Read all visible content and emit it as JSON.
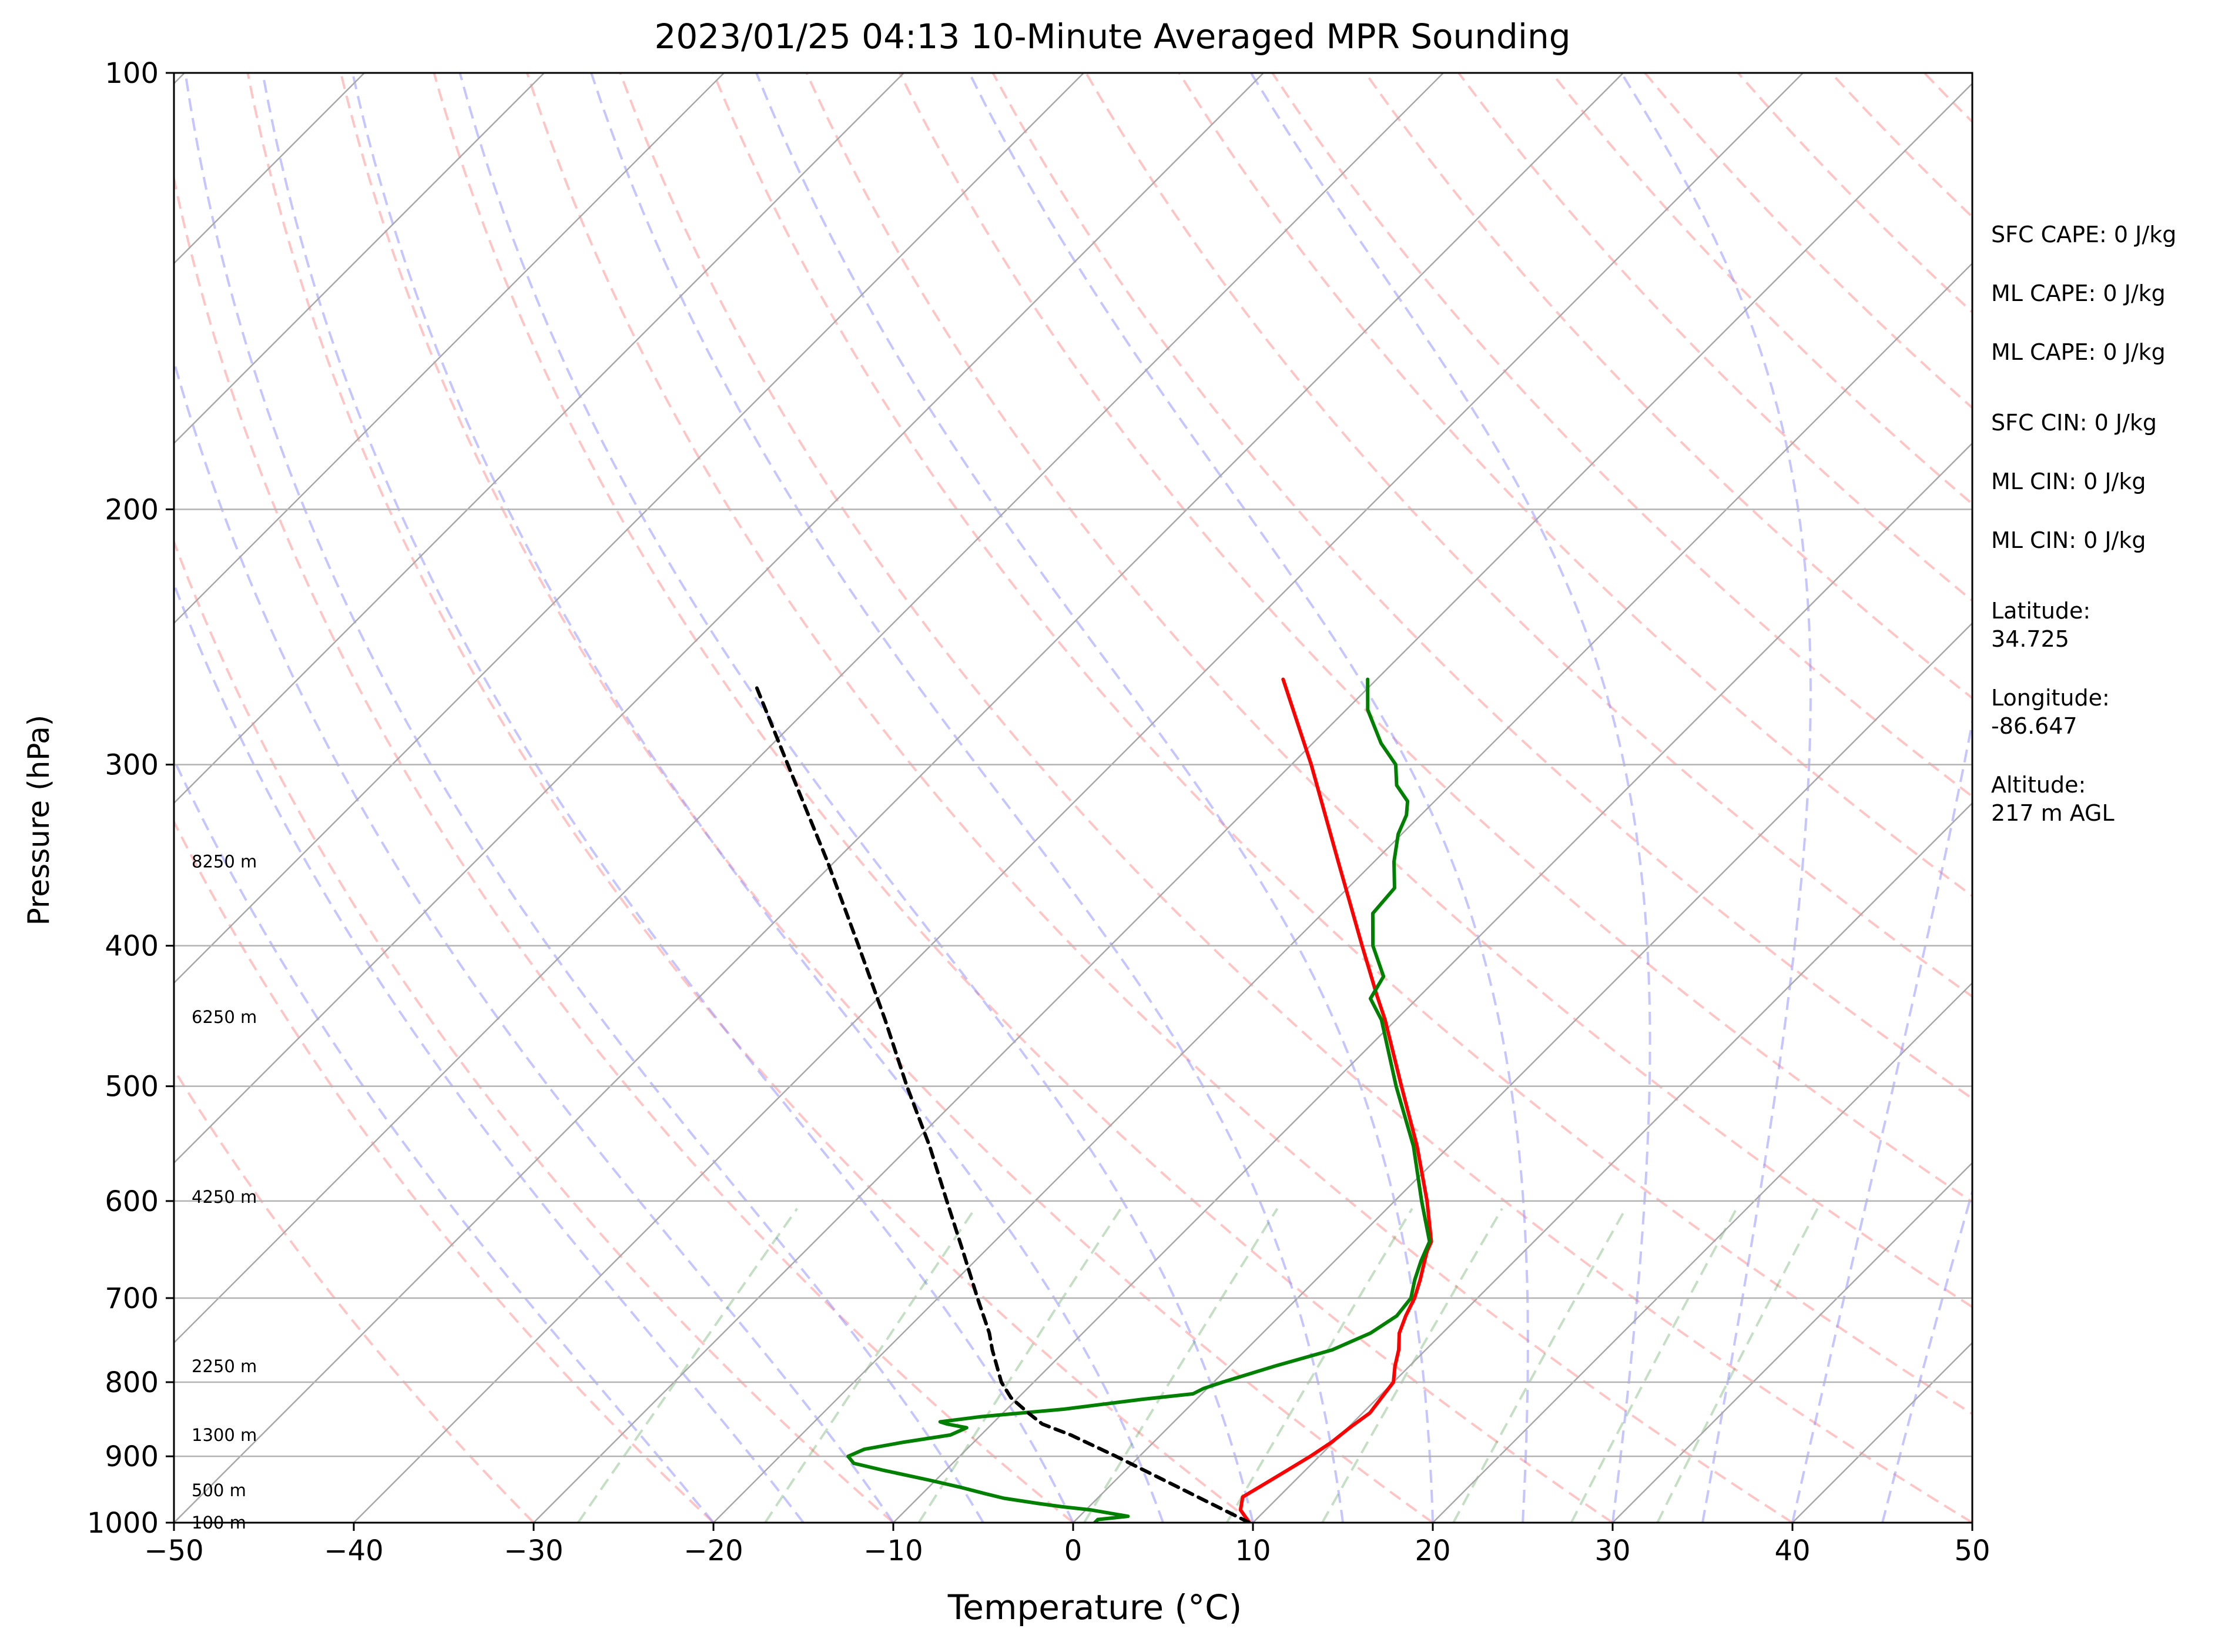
{
  "title": "2023/01/25 04:13 10-Minute Averaged MPR Sounding",
  "xlabel": "Temperature (°C)",
  "ylabel": "Pressure (hPa)",
  "side_panel": {
    "sfc_cape": "SFC CAPE: 0 J/kg",
    "ml_cape_1": "ML CAPE: 0 J/kg",
    "ml_cape_2": "ML CAPE: 0 J/kg",
    "sfc_cin": "SFC CIN: 0 J/kg",
    "ml_cin_1": "ML CIN: 0 J/kg",
    "ml_cin_2": "ML CIN: 0 J/kg",
    "latitude": "Latitude:\n34.725",
    "longitude": "Longitude:\n-86.647",
    "altitude": "Altitude:\n217 m AGL"
  },
  "chart_data": {
    "type": "line",
    "subtype": "skew-T log-p",
    "title": "2023/01/25 04:13 10-Minute Averaged MPR Sounding",
    "xlabel": "Temperature (°C)",
    "ylabel": "Pressure (hPa)",
    "xlim": [
      -50,
      50
    ],
    "ylim": [
      1000,
      100
    ],
    "yscale": "log",
    "x_ticks": [
      -50,
      -40,
      -30,
      -20,
      -10,
      0,
      10,
      20,
      30,
      40,
      50
    ],
    "x_tick_labels": [
      "−50",
      "−40",
      "−30",
      "−20",
      "−10",
      "0",
      "10",
      "20",
      "30",
      "40",
      "50"
    ],
    "y_ticks": [
      100,
      200,
      300,
      400,
      500,
      600,
      700,
      800,
      900,
      1000
    ],
    "y_tick_labels": [
      "100",
      "200",
      "300",
      "400",
      "500",
      "600",
      "700",
      "800",
      "900",
      "1000"
    ],
    "grid": true,
    "height_labels": [
      {
        "p": 1000,
        "label": "100 m"
      },
      {
        "p": 950,
        "label": "500 m"
      },
      {
        "p": 870,
        "label": "1300 m"
      },
      {
        "p": 780,
        "label": "2250 m"
      },
      {
        "p": 596,
        "label": "4250 m"
      },
      {
        "p": 448,
        "label": "6250 m"
      },
      {
        "p": 350,
        "label": "8250 m"
      }
    ],
    "series": [
      {
        "color": "#ff0000",
        "points": [
          [
            1000,
            9.8
          ],
          [
            980,
            8.6
          ],
          [
            960,
            8.0
          ],
          [
            940,
            8.5
          ],
          [
            920,
            9.0
          ],
          [
            900,
            9.5
          ],
          [
            880,
            9.9
          ],
          [
            860,
            10.1
          ],
          [
            840,
            10.4
          ],
          [
            820,
            10.2
          ],
          [
            800,
            10.0
          ],
          [
            780,
            9.2
          ],
          [
            760,
            8.5
          ],
          [
            740,
            7.6
          ],
          [
            720,
            7.0
          ],
          [
            700,
            6.5
          ],
          [
            680,
            5.8
          ],
          [
            660,
            5.0
          ],
          [
            650,
            4.6
          ],
          [
            640,
            4.3
          ],
          [
            600,
            1.8
          ],
          [
            550,
            -1.8
          ],
          [
            500,
            -6.0
          ],
          [
            450,
            -10.6
          ],
          [
            433,
            -12.4
          ],
          [
            400,
            -16.0
          ],
          [
            350,
            -22.0
          ],
          [
            300,
            -28.9
          ],
          [
            262,
            -35.2
          ]
        ]
      },
      {
        "color": "#008000",
        "points": [
          [
            1000,
            1.2
          ],
          [
            995,
            1.2
          ],
          [
            990,
            2.7
          ],
          [
            985,
            1.5
          ],
          [
            980,
            0.3
          ],
          [
            975,
            -1.5
          ],
          [
            970,
            -3.0
          ],
          [
            962,
            -5.2
          ],
          [
            955,
            -6.5
          ],
          [
            945,
            -8.3
          ],
          [
            935,
            -10.3
          ],
          [
            920,
            -13.5
          ],
          [
            910,
            -15.5
          ],
          [
            900,
            -16.2
          ],
          [
            890,
            -15.7
          ],
          [
            880,
            -13.9
          ],
          [
            870,
            -11.7
          ],
          [
            860,
            -11.2
          ],
          [
            855,
            -12.5
          ],
          [
            852,
            -13.0
          ],
          [
            845,
            -11.0
          ],
          [
            835,
            -6.8
          ],
          [
            822,
            -3.0
          ],
          [
            815,
            -0.5
          ],
          [
            808,
            -0.2
          ],
          [
            800,
            0.5
          ],
          [
            780,
            2.5
          ],
          [
            760,
            4.8
          ],
          [
            740,
            6.0
          ],
          [
            720,
            6.5
          ],
          [
            700,
            6.3
          ],
          [
            680,
            5.5
          ],
          [
            660,
            4.8
          ],
          [
            650,
            4.5
          ],
          [
            640,
            4.2
          ],
          [
            600,
            1.5
          ],
          [
            550,
            -2.0
          ],
          [
            500,
            -6.3
          ],
          [
            450,
            -10.8
          ],
          [
            435,
            -12.6
          ],
          [
            420,
            -13.1
          ],
          [
            400,
            -15.4
          ],
          [
            380,
            -17.2
          ],
          [
            365,
            -17.4
          ],
          [
            350,
            -18.9
          ],
          [
            335,
            -20.2
          ],
          [
            325,
            -20.8
          ],
          [
            318,
            -21.5
          ],
          [
            310,
            -23.0
          ],
          [
            300,
            -24.2
          ],
          [
            290,
            -26.2
          ],
          [
            275,
            -28.8
          ],
          [
            265,
            -30.1
          ],
          [
            262,
            -30.5
          ]
        ]
      },
      {
        "color": "#000000",
        "dashed": true,
        "points": [
          [
            1000,
            9.8
          ],
          [
            950,
            4.4
          ],
          [
            900,
            -1.3
          ],
          [
            870,
            -5.0
          ],
          [
            855,
            -7.2
          ],
          [
            840,
            -8.6
          ],
          [
            820,
            -10.4
          ],
          [
            800,
            -11.8
          ],
          [
            760,
            -14.1
          ],
          [
            740,
            -15.2
          ],
          [
            700,
            -17.8
          ],
          [
            650,
            -21.2
          ],
          [
            600,
            -24.9
          ],
          [
            550,
            -28.9
          ],
          [
            500,
            -33.5
          ],
          [
            450,
            -38.4
          ],
          [
            400,
            -44.0
          ],
          [
            350,
            -50.4
          ],
          [
            300,
            -58.0
          ],
          [
            265,
            -64.1
          ]
        ]
      }
    ]
  }
}
